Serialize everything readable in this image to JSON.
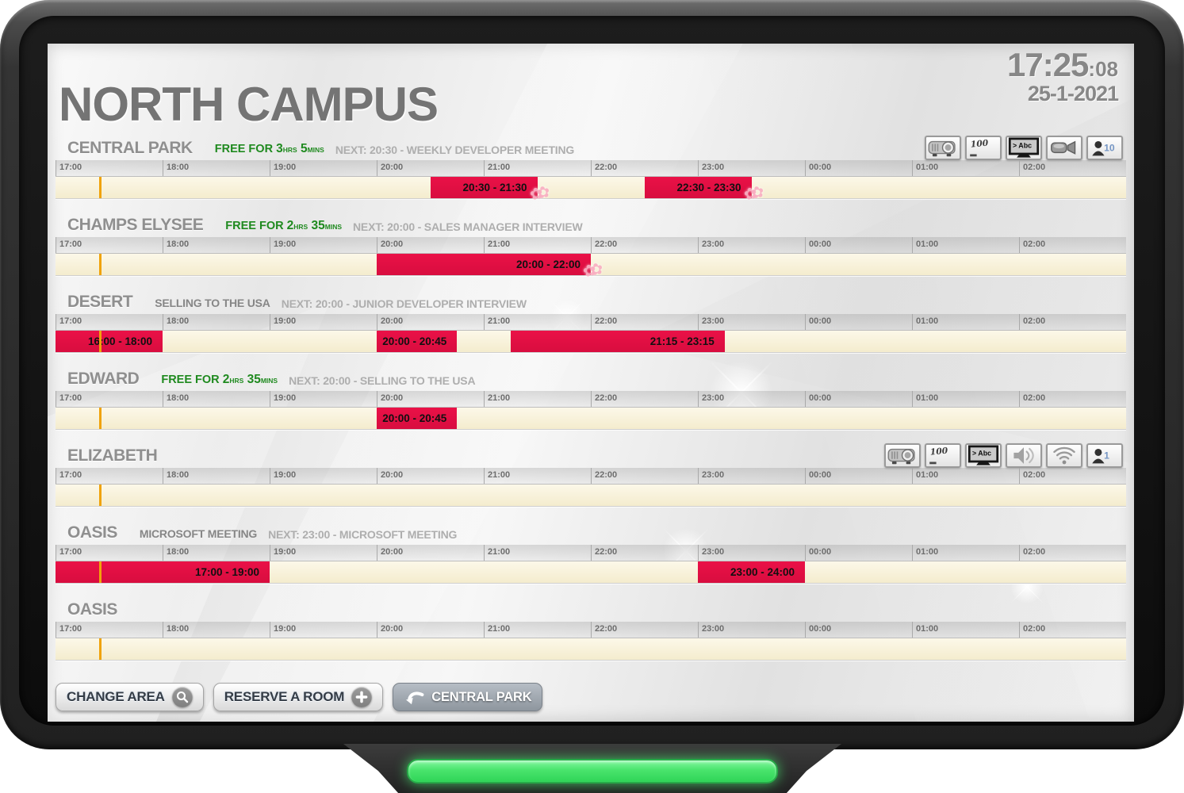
{
  "title": "NORTH CAMPUS",
  "device": {
    "clock": "17:25",
    "seconds": ":08",
    "date": "25-1-2021"
  },
  "timeline": {
    "hours": [
      "17:00",
      "18:00",
      "19:00",
      "20:00",
      "21:00",
      "22:00",
      "23:00",
      "00:00",
      "01:00",
      "02:00"
    ],
    "window_start": "17:00",
    "window_hours": 10,
    "current_time": "17:25"
  },
  "rooms": [
    {
      "name": "CENTRAL PARK",
      "free": {
        "prefix": "FREE FOR",
        "hours": "3",
        "hours_unit": "HRS",
        "mins": "5",
        "mins_unit": "MINS"
      },
      "next": "NEXT: 20:30 - WEEKLY DEVELOPER MEETING",
      "amenities": [
        {
          "icon": "projector-icon"
        },
        {
          "icon": "whiteboard-icon",
          "text": "100"
        },
        {
          "icon": "display-icon",
          "text": "> Abc"
        },
        {
          "icon": "camera-icon"
        },
        {
          "icon": "capacity-icon",
          "text": "10"
        }
      ],
      "bookings": [
        {
          "label": "20:30 - 21:30",
          "start": "20:30",
          "end": "21:30",
          "sticker": true
        },
        {
          "label": "22:30 - 23:30",
          "start": "22:30",
          "end": "23:30",
          "sticker": true
        }
      ]
    },
    {
      "name": "CHAMPS ELYSEE",
      "free": {
        "prefix": "FREE FOR",
        "hours": "2",
        "hours_unit": "HRS",
        "mins": "35",
        "mins_unit": "MINS"
      },
      "next": "NEXT: 20:00 - SALES MANAGER INTERVIEW",
      "amenities": [],
      "bookings": [
        {
          "label": "20:00 - 22:00",
          "start": "20:00",
          "end": "22:00",
          "sticker": true
        }
      ]
    },
    {
      "name": "DESERT",
      "current": "SELLING TO THE USA",
      "next": "NEXT: 20:00 - JUNIOR DEVELOPER INTERVIEW",
      "amenities": [],
      "bookings": [
        {
          "label": "16:00 - 18:00",
          "start": "16:00",
          "end": "18:00"
        },
        {
          "label": "20:00 - 20:45",
          "start": "20:00",
          "end": "20:45"
        },
        {
          "label": "21:15 - 23:15",
          "start": "21:15",
          "end": "23:15"
        }
      ]
    },
    {
      "name": "EDWARD",
      "free": {
        "prefix": "FREE FOR",
        "hours": "2",
        "hours_unit": "HRS",
        "mins": "35",
        "mins_unit": "MINS"
      },
      "next": "NEXT: 20:00 - SELLING TO THE USA",
      "amenities": [],
      "bookings": [
        {
          "label": "20:00 - 20:45",
          "start": "20:00",
          "end": "20:45"
        }
      ]
    },
    {
      "name": "ELIZABETH",
      "amenities": [
        {
          "icon": "projector-icon"
        },
        {
          "icon": "whiteboard-icon",
          "text": "100"
        },
        {
          "icon": "display-icon",
          "text": "> Abc"
        },
        {
          "icon": "speaker-icon"
        },
        {
          "icon": "wifi-icon"
        },
        {
          "icon": "capacity-icon",
          "text": "1"
        }
      ],
      "bookings": []
    },
    {
      "name": "OASIS",
      "current": "MICROSOFT MEETING",
      "next": "NEXT: 23:00 - MICROSOFT MEETING",
      "amenities": [],
      "bookings": [
        {
          "label": "17:00 - 19:00",
          "start": "17:00",
          "end": "19:00"
        },
        {
          "label": "23:00 - 24:00",
          "start": "23:00",
          "end": "24:00"
        }
      ]
    },
    {
      "name": "OASIS",
      "amenities": [],
      "bookings": []
    }
  ],
  "footer": {
    "change_area_label": "CHANGE AREA",
    "reserve_label": "RESERVE A ROOM",
    "back_room_label": "CENTRAL PARK"
  },
  "colors": {
    "booking_red": "#EA1147",
    "free_green": "#1F8A1F",
    "now_line_orange": "#F0A30B",
    "led_green": "#4CE86C"
  }
}
